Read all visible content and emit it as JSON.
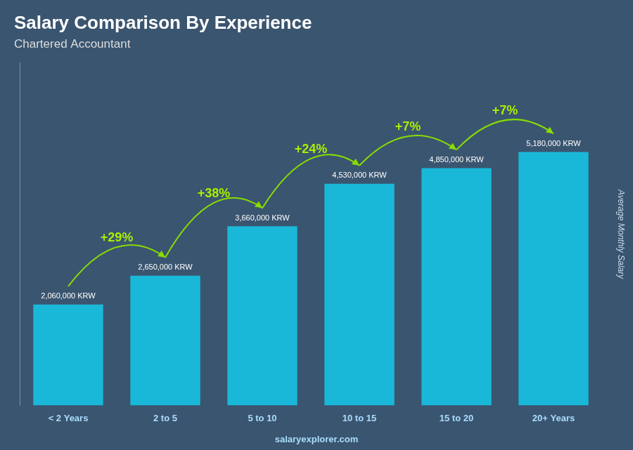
{
  "chart_data": {
    "type": "bar",
    "title": "Salary Comparison By Experience",
    "subtitle": "Chartered Accountant",
    "ylabel": "Average Monthly Salary",
    "footer": "salaryexplorer.com",
    "categories": [
      "< 2 Years",
      "2 to 5",
      "5 to 10",
      "10 to 15",
      "15 to 20",
      "20+ Years"
    ],
    "values": [
      2060000,
      2650000,
      3660000,
      4530000,
      4850000,
      5180000
    ],
    "value_labels": [
      "2,060,000 KRW",
      "2,650,000 KRW",
      "3,660,000 KRW",
      "4,530,000 KRW",
      "4,850,000 KRW",
      "5,180,000 KRW"
    ],
    "data_labels": true,
    "annotations": [
      "+29%",
      "+38%",
      "+24%",
      "+7%",
      "+7%"
    ],
    "color": "#1ab8d8",
    "ylim": [
      0,
      7000000
    ],
    "tick_labels": "x",
    "grid": false,
    "legend": false
  }
}
